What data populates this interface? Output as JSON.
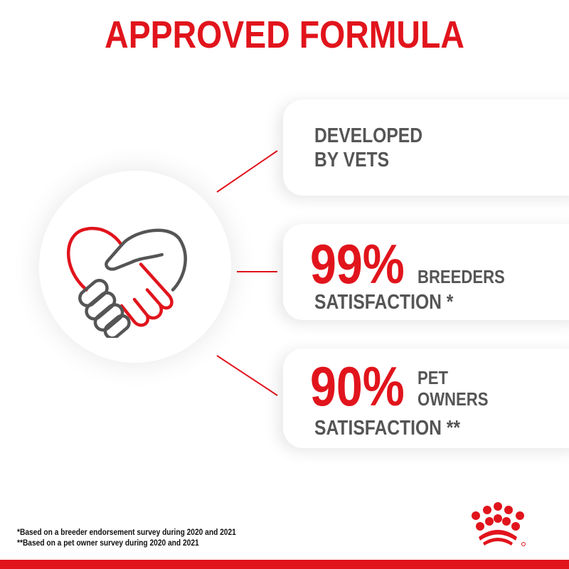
{
  "title": "APPROVED FORMULA",
  "items": [
    {
      "text_line1": "DEVELOPED",
      "text_line2": "BY VETS"
    },
    {
      "value": "99%",
      "label_line1": "BREEDERS",
      "label_line2": "SATISFACTION *"
    },
    {
      "value": "90%",
      "label_line1": "PET",
      "label_line1b": "OWNERS",
      "label_line2": "SATISFACTION **"
    }
  ],
  "footnotes": [
    "*Based on a breeder endorsement survey during 2020 and 2021",
    "**Based on a pet owner survey during 2020 and 2021"
  ],
  "icons": [
    "handshake-heart-icon",
    "royal-canin-crown-logo"
  ],
  "colors": {
    "brand_red": "#e1141c",
    "text_gray": "#555555"
  }
}
